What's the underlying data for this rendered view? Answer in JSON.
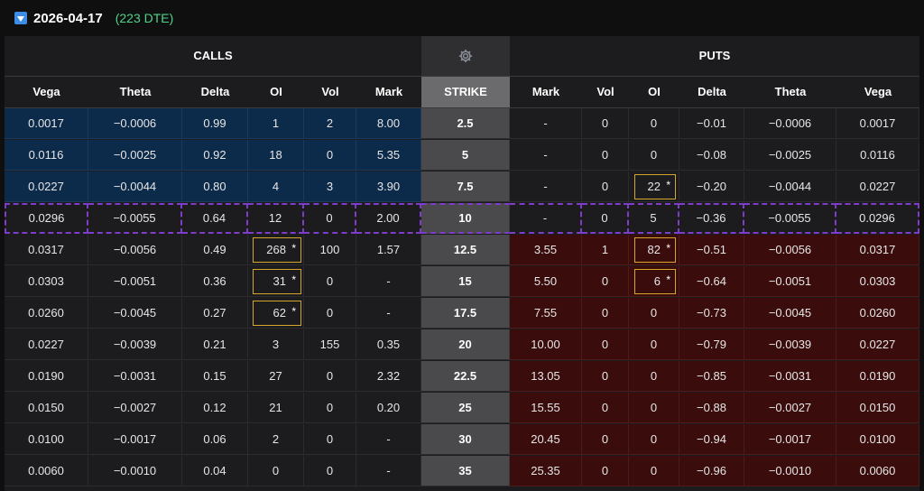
{
  "expiration": {
    "date": "2026-04-17",
    "dte": "(223 DTE)"
  },
  "groups": {
    "calls": "CALLS",
    "puts": "PUTS",
    "settings_icon": "gear-icon"
  },
  "columns": {
    "calls": [
      "Vega",
      "Theta",
      "Delta",
      "OI",
      "Vol",
      "Mark"
    ],
    "strike": "STRIKE",
    "puts": [
      "Mark",
      "Vol",
      "OI",
      "Delta",
      "Theta",
      "Vega"
    ]
  },
  "colors": {
    "itm_call": "#0c2a4a",
    "itm_put": "#3a0c0c",
    "atm_outline": "#7d3cc9",
    "oi_highlight": "#d4a72c",
    "dte_green": "#4fd48a"
  },
  "rows": [
    {
      "strike": "2.5",
      "call": {
        "vega": "0.0017",
        "theta": "−0.0006",
        "delta": "0.99",
        "oi": "1",
        "vol": "2",
        "mark": "8.00",
        "oi_flag": false
      },
      "put": {
        "mark": "-",
        "vol": "0",
        "oi": "0",
        "delta": "−0.01",
        "theta": "−0.0006",
        "vega": "0.0017",
        "oi_flag": false
      }
    },
    {
      "strike": "5",
      "call": {
        "vega": "0.0116",
        "theta": "−0.0025",
        "delta": "0.92",
        "oi": "18",
        "vol": "0",
        "mark": "5.35",
        "oi_flag": false
      },
      "put": {
        "mark": "-",
        "vol": "0",
        "oi": "0",
        "delta": "−0.08",
        "theta": "−0.0025",
        "vega": "0.0116",
        "oi_flag": false
      }
    },
    {
      "strike": "7.5",
      "call": {
        "vega": "0.0227",
        "theta": "−0.0044",
        "delta": "0.80",
        "oi": "4",
        "vol": "3",
        "mark": "3.90",
        "oi_flag": false
      },
      "put": {
        "mark": "-",
        "vol": "0",
        "oi": "22",
        "delta": "−0.20",
        "theta": "−0.0044",
        "vega": "0.0227",
        "oi_flag": true
      }
    },
    {
      "strike": "10",
      "call": {
        "vega": "0.0296",
        "theta": "−0.0055",
        "delta": "0.64",
        "oi": "12",
        "vol": "0",
        "mark": "2.00",
        "oi_flag": false
      },
      "put": {
        "mark": "-",
        "vol": "0",
        "oi": "5",
        "delta": "−0.36",
        "theta": "−0.0055",
        "vega": "0.0296",
        "oi_flag": false
      }
    },
    {
      "strike": "12.5",
      "call": {
        "vega": "0.0317",
        "theta": "−0.0056",
        "delta": "0.49",
        "oi": "268",
        "vol": "100",
        "mark": "1.57",
        "oi_flag": true
      },
      "put": {
        "mark": "3.55",
        "vol": "1",
        "oi": "82",
        "delta": "−0.51",
        "theta": "−0.0056",
        "vega": "0.0317",
        "oi_flag": true
      }
    },
    {
      "strike": "15",
      "call": {
        "vega": "0.0303",
        "theta": "−0.0051",
        "delta": "0.36",
        "oi": "31",
        "vol": "0",
        "mark": "-",
        "oi_flag": true
      },
      "put": {
        "mark": "5.50",
        "vol": "0",
        "oi": "6",
        "delta": "−0.64",
        "theta": "−0.0051",
        "vega": "0.0303",
        "oi_flag": true
      }
    },
    {
      "strike": "17.5",
      "call": {
        "vega": "0.0260",
        "theta": "−0.0045",
        "delta": "0.27",
        "oi": "62",
        "vol": "0",
        "mark": "-",
        "oi_flag": true
      },
      "put": {
        "mark": "7.55",
        "vol": "0",
        "oi": "0",
        "delta": "−0.73",
        "theta": "−0.0045",
        "vega": "0.0260",
        "oi_flag": false
      }
    },
    {
      "strike": "20",
      "call": {
        "vega": "0.0227",
        "theta": "−0.0039",
        "delta": "0.21",
        "oi": "3",
        "vol": "155",
        "mark": "0.35",
        "oi_flag": false
      },
      "put": {
        "mark": "10.00",
        "vol": "0",
        "oi": "0",
        "delta": "−0.79",
        "theta": "−0.0039",
        "vega": "0.0227",
        "oi_flag": false
      }
    },
    {
      "strike": "22.5",
      "call": {
        "vega": "0.0190",
        "theta": "−0.0031",
        "delta": "0.15",
        "oi": "27",
        "vol": "0",
        "mark": "2.32",
        "oi_flag": false
      },
      "put": {
        "mark": "13.05",
        "vol": "0",
        "oi": "0",
        "delta": "−0.85",
        "theta": "−0.0031",
        "vega": "0.0190",
        "oi_flag": false
      }
    },
    {
      "strike": "25",
      "call": {
        "vega": "0.0150",
        "theta": "−0.0027",
        "delta": "0.12",
        "oi": "21",
        "vol": "0",
        "mark": "0.20",
        "oi_flag": false
      },
      "put": {
        "mark": "15.55",
        "vol": "0",
        "oi": "0",
        "delta": "−0.88",
        "theta": "−0.0027",
        "vega": "0.0150",
        "oi_flag": false
      }
    },
    {
      "strike": "30",
      "call": {
        "vega": "0.0100",
        "theta": "−0.0017",
        "delta": "0.06",
        "oi": "2",
        "vol": "0",
        "mark": "-",
        "oi_flag": false
      },
      "put": {
        "mark": "20.45",
        "vol": "0",
        "oi": "0",
        "delta": "−0.94",
        "theta": "−0.0017",
        "vega": "0.0100",
        "oi_flag": false
      }
    },
    {
      "strike": "35",
      "call": {
        "vega": "0.0060",
        "theta": "−0.0010",
        "delta": "0.04",
        "oi": "0",
        "vol": "0",
        "mark": "-",
        "oi_flag": false
      },
      "put": {
        "mark": "25.35",
        "vol": "0",
        "oi": "0",
        "delta": "−0.96",
        "theta": "−0.0010",
        "vega": "0.0060",
        "oi_flag": false
      }
    }
  ],
  "itm_call_rows": [
    0,
    1,
    2
  ],
  "itm_put_rows": [
    4,
    5,
    6,
    7,
    8,
    9,
    10,
    11
  ],
  "atm_row": 3
}
